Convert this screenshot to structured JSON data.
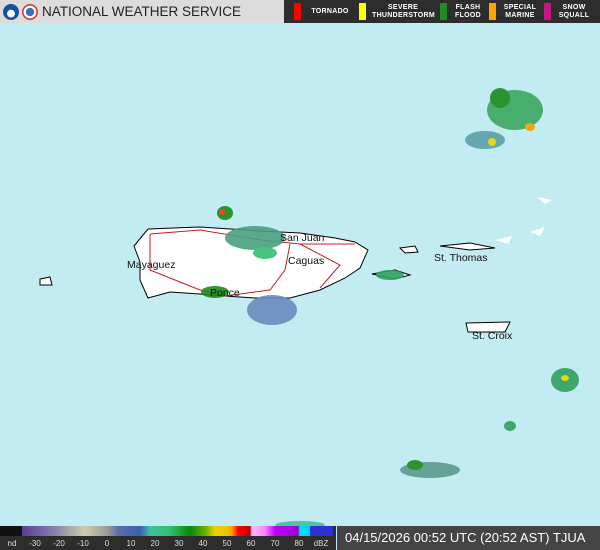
{
  "header": {
    "title": "NATIONAL WEATHER SERVICE",
    "logos": [
      "noaa-logo",
      "nws-logo"
    ],
    "warnings": [
      {
        "label": [
          "TORNADO"
        ],
        "color": "#ff0000"
      },
      {
        "label": [
          "SEVERE",
          "THUNDERSTORM"
        ],
        "color": "#ffff00"
      },
      {
        "label": [
          "FLASH",
          "FLOOD"
        ],
        "color": "#228b22"
      },
      {
        "label": [
          "SPECIAL",
          "MARINE"
        ],
        "color": "#ffa500"
      },
      {
        "label": [
          "SNOW",
          "SQUALL"
        ],
        "color": "#c71585"
      }
    ]
  },
  "map": {
    "cities": [
      "Mayaguez",
      "San Juan",
      "Caguas",
      "Ponce",
      "St. Thomas",
      "St. Croix"
    ],
    "water_color": "#c3ebf2",
    "land_color": "#ffffff"
  },
  "scale": {
    "ticks": [
      "nd",
      "-30",
      "-20",
      "-10",
      "0",
      "10",
      "20",
      "30",
      "40",
      "50",
      "60",
      "70",
      "80",
      "dBZ"
    ]
  },
  "timestamp": "04/15/2026 00:52 UTC (20:52 AST)  TJUA"
}
